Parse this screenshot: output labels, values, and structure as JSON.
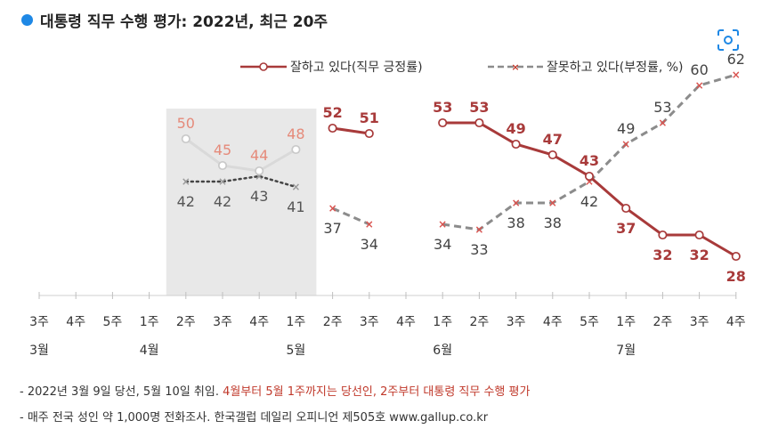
{
  "header": {
    "title": "대통령 직무 수행 평가: 2022년, 최근 20주",
    "scan_icon": "scan-search-icon"
  },
  "legend": {
    "positive": "잘하고 있다(직무 긍정률)",
    "negative": "잘못하고 있다(부정률, %)"
  },
  "footnotes": {
    "line1_prefix": "- 2022년 3월 9일 당선, 5월 10일 취임. ",
    "line1_highlight": "4월부터 5월 1주까지는 당선인, 2주부터 대통령 직무 수행 평가",
    "line2": "- 매주 전국 성인 약 1,000명 전화조사. 한국갤럽 데일리 오피니언 제505호 www.gallup.co.kr"
  },
  "chart_data": {
    "type": "line",
    "categories": [
      "3주",
      "4주",
      "5주",
      "1주",
      "2주",
      "3주",
      "4주",
      "1주",
      "2주",
      "3주",
      "4주",
      "1주",
      "2주",
      "3주",
      "4주",
      "5주",
      "1주",
      "2주",
      "3주",
      "4주"
    ],
    "month_labels": [
      {
        "index": 0,
        "label": "3월"
      },
      {
        "index": 3,
        "label": "4월"
      },
      {
        "index": 7,
        "label": "5월"
      },
      {
        "index": 11,
        "label": "6월"
      },
      {
        "index": 16,
        "label": "7월"
      }
    ],
    "series": [
      {
        "name": "잘하고 있다(직무 긍정률)",
        "values": [
          null,
          null,
          null,
          null,
          50,
          45,
          44,
          48,
          52,
          51,
          null,
          53,
          53,
          49,
          47,
          43,
          37,
          32,
          32,
          28
        ]
      },
      {
        "name": "잘못하고 있다(부정률, %)",
        "values": [
          null,
          null,
          null,
          null,
          42,
          42,
          43,
          41,
          37,
          34,
          null,
          34,
          33,
          38,
          38,
          42,
          49,
          53,
          60,
          62
        ]
      }
    ],
    "shaded_period": {
      "from_index": 4,
      "to_index": 7
    },
    "colors": {
      "positive": "#a83a3a",
      "negative": "#8c8c8c",
      "shaded_positive": "#d9d9d9",
      "shaded_label_red": "#e58a7a",
      "shaded_bg": "#e8e8e8",
      "dot_neg": "#444444"
    },
    "ylim": [
      0,
      70
    ],
    "grid": false,
    "legend_position": "top-right"
  }
}
